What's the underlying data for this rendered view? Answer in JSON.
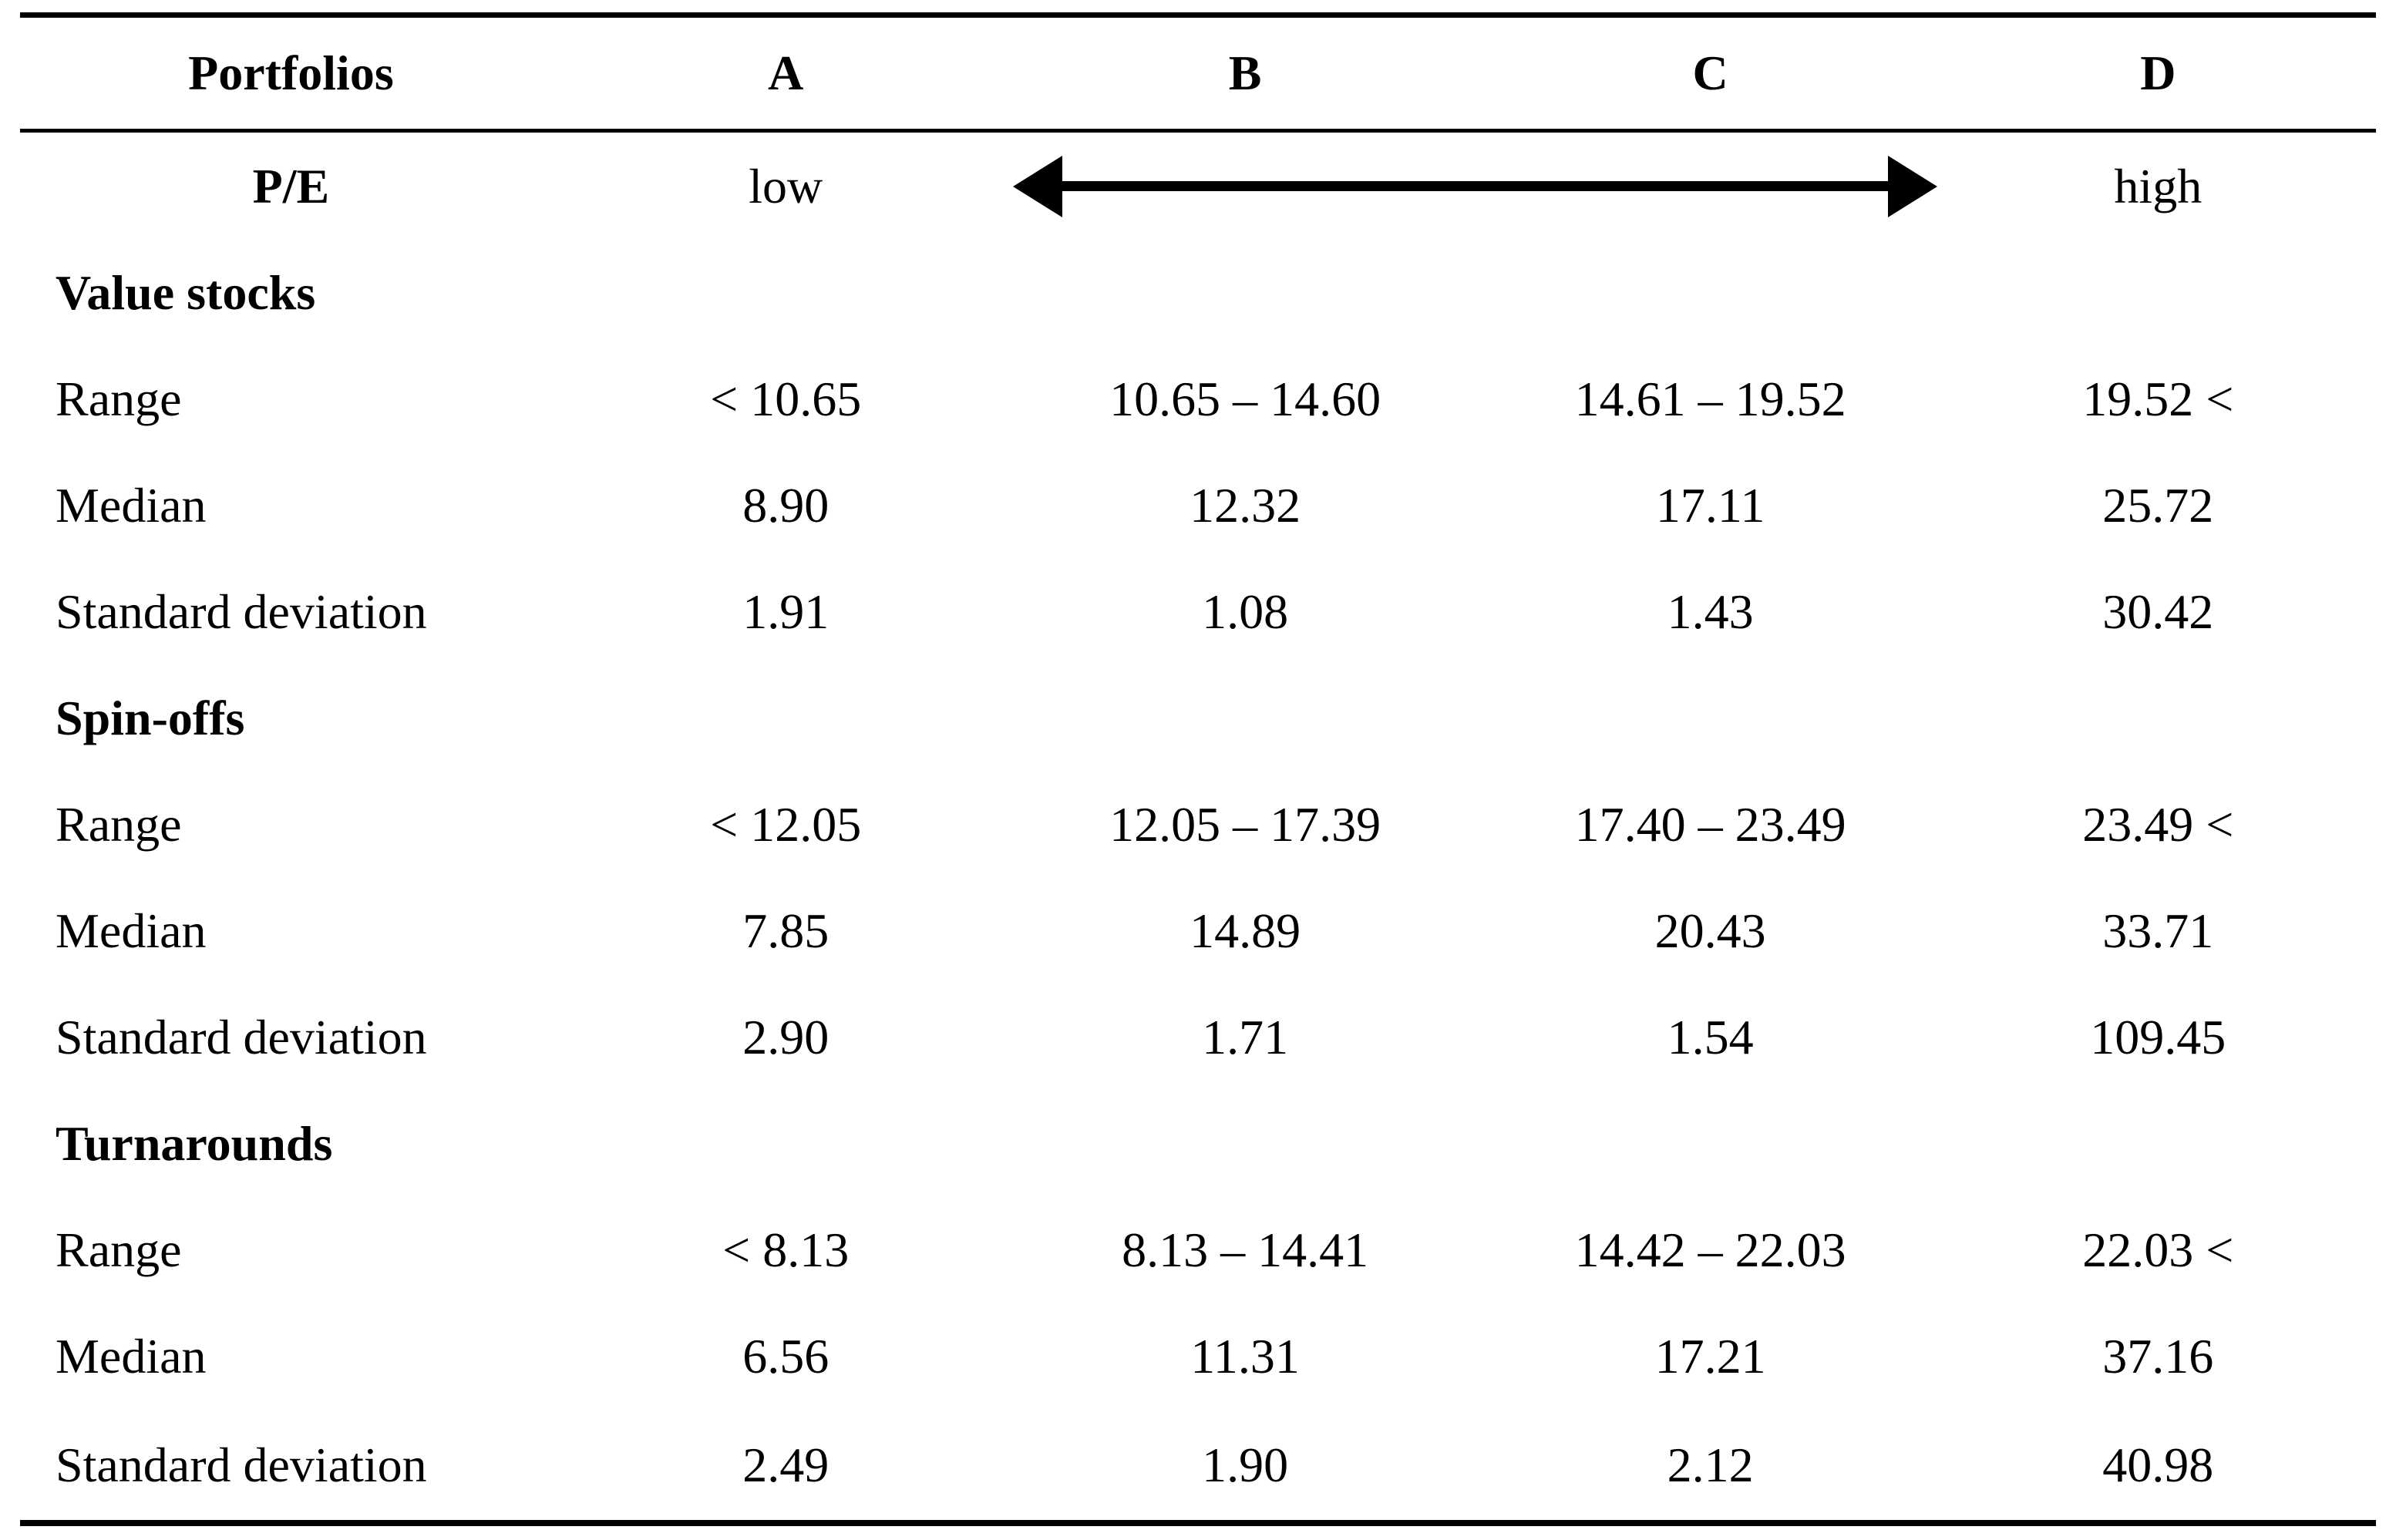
{
  "colors": {
    "background": "#ffffff",
    "text": "#000000",
    "rule": "#000000"
  },
  "table": {
    "header": {
      "label": "Portfolios",
      "columns": [
        "A",
        "B",
        "C",
        "D"
      ]
    },
    "pe_row": {
      "label": "P/E",
      "low": "low",
      "high": "high",
      "arrow_icon": "double-headed-horizontal-arrow"
    },
    "sections": [
      {
        "title": "Value stocks",
        "rows": [
          {
            "label": "Range",
            "values": [
              "< 10.65",
              "10.65 – 14.60",
              "14.61 – 19.52",
              "19.52 <"
            ]
          },
          {
            "label": "Median",
            "values": [
              "8.90",
              "12.32",
              "17.11",
              "25.72"
            ]
          },
          {
            "label": "Standard deviation",
            "values": [
              "1.91",
              "1.08",
              "1.43",
              "30.42"
            ]
          }
        ]
      },
      {
        "title": "Spin-offs",
        "rows": [
          {
            "label": "Range",
            "values": [
              "< 12.05",
              "12.05 – 17.39",
              "17.40 – 23.49",
              "23.49 <"
            ]
          },
          {
            "label": "Median",
            "values": [
              "7.85",
              "14.89",
              "20.43",
              "33.71"
            ]
          },
          {
            "label": "Standard deviation",
            "values": [
              "2.90",
              "1.71",
              "1.54",
              "109.45"
            ]
          }
        ]
      },
      {
        "title": "Turnarounds",
        "rows": [
          {
            "label": "Range",
            "values": [
              "< 8.13",
              "8.13 – 14.41",
              "14.42 – 22.03",
              "22.03 <"
            ]
          },
          {
            "label": "Median",
            "values": [
              "6.56",
              "11.31",
              "17.21",
              "37.16"
            ]
          },
          {
            "label": "Standard deviation",
            "values": [
              "2.49",
              "1.90",
              "2.12",
              "40.98"
            ]
          }
        ]
      }
    ]
  }
}
